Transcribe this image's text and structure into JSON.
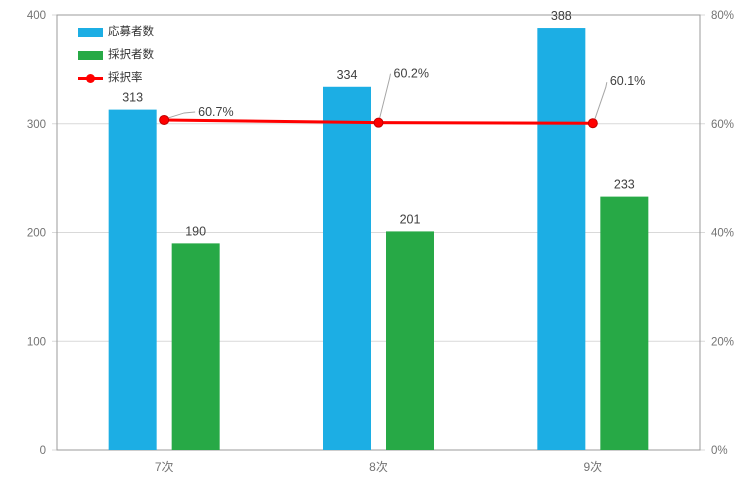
{
  "chart_data": {
    "type": "bar",
    "subtype": "bar-line-combo",
    "title": "",
    "categories": [
      "7次",
      "8次",
      "9次"
    ],
    "series": [
      {
        "id": "applicants",
        "name": "応募者数",
        "type": "bar",
        "axis": "left",
        "color": "#1caee4",
        "values": [
          313,
          334,
          388
        ],
        "value_labels": [
          "313",
          "334",
          "388"
        ]
      },
      {
        "id": "selected",
        "name": "採択者数",
        "type": "bar",
        "axis": "left",
        "color": "#27a946",
        "values": [
          190,
          201,
          233
        ],
        "value_labels": [
          "190",
          "201",
          "233"
        ]
      },
      {
        "id": "rate",
        "name": "採択率",
        "type": "line",
        "axis": "right",
        "color": "#ff0000",
        "values": [
          60.7,
          60.2,
          60.1
        ],
        "value_labels": [
          "60.7%",
          "60.2%",
          "60.1%"
        ]
      }
    ],
    "left_axis": {
      "min": 0,
      "max": 400,
      "tick_labels": [
        "0",
        "100",
        "200",
        "300",
        "400"
      ]
    },
    "right_axis": {
      "min": 0,
      "max": 80,
      "tick_labels": [
        "0%",
        "20%",
        "40%",
        "60%",
        "80%"
      ]
    },
    "grid": true,
    "legend_position": "top-left",
    "style": {
      "grid_color": "#d9d9d9",
      "border_color": "#9b9b9b",
      "tick_label_color": "#737373",
      "data_label_color": "#3f3f3f",
      "leader_line_color": "#a6a6a6",
      "marker_stroke": "#c00000",
      "background": "#ffffff"
    }
  }
}
